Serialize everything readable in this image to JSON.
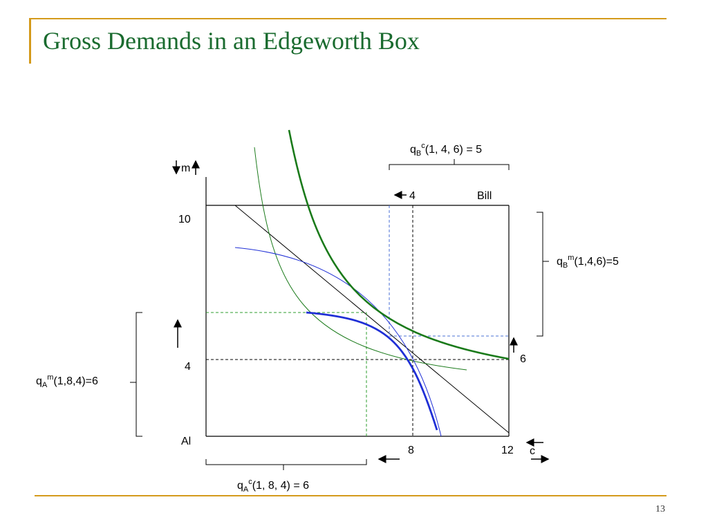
{
  "slide": {
    "title": "Gross Demands in an Edgeworth Box",
    "page_number": "13"
  },
  "diagram": {
    "owners": {
      "origin_a": "Al",
      "origin_b": "Bill"
    },
    "axis_labels": {
      "money": "m",
      "consumption": "c"
    },
    "ticks": {
      "m10": "10",
      "m4": "4",
      "c8": "8",
      "c12": "12",
      "bill_c4": "4",
      "bill_m6": "6"
    },
    "labels": {
      "qBc": {
        "base": "q",
        "sub": "B",
        "sup": "c",
        "args": "(1, 4, 6) = 5"
      },
      "qBm": {
        "base": "q",
        "sub": "B",
        "sup": "m",
        "args": "(1,4,6)=5"
      },
      "qAm": {
        "base": "q",
        "sub": "A",
        "sup": "m",
        "args": "(1,8,4)=6"
      },
      "qAc": {
        "base": "q",
        "sub": "A",
        "sup": "c",
        "args": "(1, 8, 4) = 6"
      }
    },
    "colors": {
      "green": "#1a7a1a",
      "blue": "#1f2fd6",
      "dashed_green": "#2e9e2e",
      "dashed_blue": "#4a6fd6"
    }
  }
}
